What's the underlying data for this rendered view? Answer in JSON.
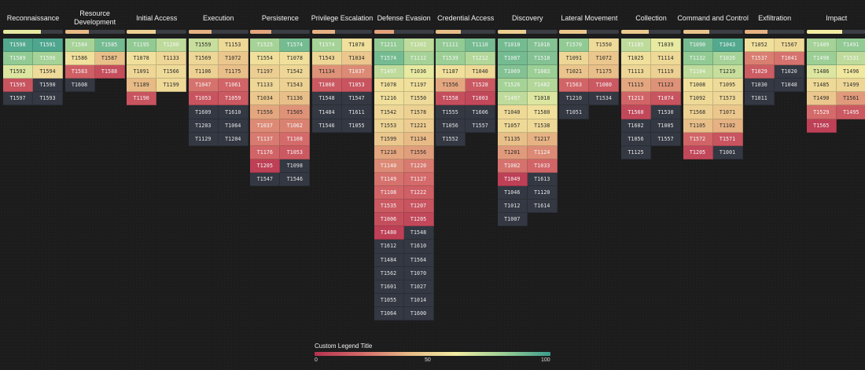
{
  "chart_data": {
    "type": "heatmap",
    "title": "",
    "legend": {
      "title": "Custom Legend Title",
      "min": 0,
      "max": 100,
      "ticks": [
        "0",
        "50",
        "100"
      ],
      "colors": [
        "#b5324f",
        "#d46a6a",
        "#e8ba86",
        "#f2eda3",
        "#9ccf95",
        "#3a9c8c"
      ],
      "placement": "bottom-center"
    },
    "empty_color": "#333842",
    "tactics": [
      {
        "name": "Reconnaissance",
        "progress": 63,
        "techniques": [
          {
            "id": "T1598",
            "score": 95
          },
          {
            "id": "T1591",
            "score": 96
          },
          {
            "id": "T1589",
            "score": 82
          },
          {
            "id": "T1596",
            "score": 78
          },
          {
            "id": "T1592",
            "score": 65
          },
          {
            "id": "T1594",
            "score": 53
          },
          {
            "id": "T1595",
            "score": 12
          },
          {
            "id": "T1590",
            "score": null
          },
          {
            "id": "T1597",
            "score": null
          },
          {
            "id": "T1593",
            "score": null
          }
        ]
      },
      {
        "name": "Resource Development",
        "progress": 40,
        "techniques": [
          {
            "id": "T1584",
            "score": 78
          },
          {
            "id": "T1585",
            "score": 88
          },
          {
            "id": "T1586",
            "score": 55
          },
          {
            "id": "T1587",
            "score": 42
          },
          {
            "id": "T1583",
            "score": 16
          },
          {
            "id": "T1588",
            "score": 10
          },
          {
            "id": "T1608",
            "score": null
          }
        ]
      },
      {
        "name": "Initial Access",
        "progress": 49,
        "techniques": [
          {
            "id": "T1195",
            "score": 82
          },
          {
            "id": "T1200",
            "score": 72
          },
          {
            "id": "T1078",
            "score": 55
          },
          {
            "id": "T1133",
            "score": 51
          },
          {
            "id": "T1091",
            "score": 51
          },
          {
            "id": "T1566",
            "score": 53
          },
          {
            "id": "T1189",
            "score": 40
          },
          {
            "id": "T1199",
            "score": 52
          },
          {
            "id": "T1190",
            "score": 12
          }
        ]
      },
      {
        "name": "Execution",
        "progress": 38,
        "techniques": [
          {
            "id": "T1559",
            "score": 70
          },
          {
            "id": "T1153",
            "score": 52
          },
          {
            "id": "T1569",
            "score": 51
          },
          {
            "id": "T1072",
            "score": 45
          },
          {
            "id": "T1106",
            "score": 49
          },
          {
            "id": "T1175",
            "score": 42
          },
          {
            "id": "T1047",
            "score": 22
          },
          {
            "id": "T1061",
            "score": 18
          },
          {
            "id": "T1053",
            "score": 12
          },
          {
            "id": "T1059",
            "score": 14
          },
          {
            "id": "T1609",
            "score": null
          },
          {
            "id": "T1610",
            "score": null
          },
          {
            "id": "T1203",
            "score": null
          },
          {
            "id": "T1064",
            "score": null
          },
          {
            "id": "T1129",
            "score": null
          },
          {
            "id": "T1204",
            "score": null
          }
        ]
      },
      {
        "name": "Persistence",
        "progress": 35,
        "techniques": [
          {
            "id": "T1525",
            "score": 78
          },
          {
            "id": "T1574",
            "score": 88
          },
          {
            "id": "T1554",
            "score": 55
          },
          {
            "id": "T1078",
            "score": 55
          },
          {
            "id": "T1197",
            "score": 48
          },
          {
            "id": "T1542",
            "score": 51
          },
          {
            "id": "T1133",
            "score": 51
          },
          {
            "id": "T1543",
            "score": 49
          },
          {
            "id": "T1034",
            "score": 45
          },
          {
            "id": "T1136",
            "score": 42
          },
          {
            "id": "T1556",
            "score": 35
          },
          {
            "id": "T1505",
            "score": 30
          },
          {
            "id": "T1037",
            "score": 28
          },
          {
            "id": "T1062",
            "score": 26
          },
          {
            "id": "T1137",
            "score": 24
          },
          {
            "id": "T1108",
            "score": 20
          },
          {
            "id": "T1176",
            "score": 18
          },
          {
            "id": "T1053",
            "score": 14
          },
          {
            "id": "T1205",
            "score": 5
          },
          {
            "id": "T1098",
            "score": null
          },
          {
            "id": "T1547",
            "score": null
          },
          {
            "id": "T1546",
            "score": null
          }
        ]
      },
      {
        "name": "Privilege Escalation",
        "progress": 38,
        "techniques": [
          {
            "id": "T1574",
            "score": 78
          },
          {
            "id": "T1078",
            "score": 55
          },
          {
            "id": "T1543",
            "score": 51
          },
          {
            "id": "T1034",
            "score": 45
          },
          {
            "id": "T1134",
            "score": 30
          },
          {
            "id": "T1037",
            "score": 28
          },
          {
            "id": "T1068",
            "score": 14
          },
          {
            "id": "T1053",
            "score": 12
          },
          {
            "id": "T1548",
            "score": null
          },
          {
            "id": "T1547",
            "score": null
          },
          {
            "id": "T1484",
            "score": null
          },
          {
            "id": "T1611",
            "score": null
          },
          {
            "id": "T1546",
            "score": null
          },
          {
            "id": "T1055",
            "score": null
          }
        ]
      },
      {
        "name": "Defense Evasion",
        "progress": 34,
        "techniques": [
          {
            "id": "T1211",
            "score": 82
          },
          {
            "id": "T1202",
            "score": 72
          },
          {
            "id": "T1574",
            "score": 88
          },
          {
            "id": "T1112",
            "score": 78
          },
          {
            "id": "T1497",
            "score": 72
          },
          {
            "id": "T1036",
            "score": 62
          },
          {
            "id": "T1078",
            "score": 55
          },
          {
            "id": "T1197",
            "score": 55
          },
          {
            "id": "T1216",
            "score": 55
          },
          {
            "id": "T1550",
            "score": 53
          },
          {
            "id": "T1542",
            "score": 51
          },
          {
            "id": "T1578",
            "score": 49
          },
          {
            "id": "T1553",
            "score": 50
          },
          {
            "id": "T1221",
            "score": 47
          },
          {
            "id": "T1599",
            "score": 45
          },
          {
            "id": "T1134",
            "score": 40
          },
          {
            "id": "T1218",
            "score": 35
          },
          {
            "id": "T1556",
            "score": 33
          },
          {
            "id": "T1140",
            "score": 28
          },
          {
            "id": "T1220",
            "score": 24
          },
          {
            "id": "T1149",
            "score": 22
          },
          {
            "id": "T1127",
            "score": 20
          },
          {
            "id": "T1108",
            "score": 18
          },
          {
            "id": "T1222",
            "score": 16
          },
          {
            "id": "T1535",
            "score": 14
          },
          {
            "id": "T1207",
            "score": 12
          },
          {
            "id": "T1006",
            "score": 10
          },
          {
            "id": "T1205",
            "score": 8
          },
          {
            "id": "T1480",
            "score": 5
          },
          {
            "id": "T1548",
            "score": null
          },
          {
            "id": "T1612",
            "score": null
          },
          {
            "id": "T1610",
            "score": null
          },
          {
            "id": "T1484",
            "score": null
          },
          {
            "id": "T1564",
            "score": null
          },
          {
            "id": "T1562",
            "score": null
          },
          {
            "id": "T1070",
            "score": null
          },
          {
            "id": "T1601",
            "score": null
          },
          {
            "id": "T1027",
            "score": null
          },
          {
            "id": "T1055",
            "score": null
          },
          {
            "id": "T1014",
            "score": null
          },
          {
            "id": "T1064",
            "score": null
          },
          {
            "id": "T1600",
            "score": null
          }
        ]
      },
      {
        "name": "Credential Access",
        "progress": 42,
        "techniques": [
          {
            "id": "T1111",
            "score": 82
          },
          {
            "id": "T1110",
            "score": 88
          },
          {
            "id": "T1539",
            "score": 80
          },
          {
            "id": "T1212",
            "score": 75
          },
          {
            "id": "T1187",
            "score": 55
          },
          {
            "id": "T1040",
            "score": 52
          },
          {
            "id": "T1556",
            "score": 35
          },
          {
            "id": "T1528",
            "score": 14
          },
          {
            "id": "T1558",
            "score": 10
          },
          {
            "id": "T1003",
            "score": 8
          },
          {
            "id": "T1555",
            "score": null
          },
          {
            "id": "T1606",
            "score": null
          },
          {
            "id": "T1056",
            "score": null
          },
          {
            "id": "T1557",
            "score": null
          },
          {
            "id": "T1552",
            "score": null
          }
        ]
      },
      {
        "name": "Discovery",
        "progress": 48,
        "techniques": [
          {
            "id": "T1010",
            "score": 88
          },
          {
            "id": "T1016",
            "score": 85
          },
          {
            "id": "T1087",
            "score": 88
          },
          {
            "id": "T1518",
            "score": 85
          },
          {
            "id": "T1069",
            "score": 85
          },
          {
            "id": "T1083",
            "score": 80
          },
          {
            "id": "T1526",
            "score": 78
          },
          {
            "id": "T1482",
            "score": 75
          },
          {
            "id": "T1497",
            "score": 72
          },
          {
            "id": "T1018",
            "score": 65
          },
          {
            "id": "T1040",
            "score": 52
          },
          {
            "id": "T1580",
            "score": 55
          },
          {
            "id": "T1057",
            "score": 52
          },
          {
            "id": "T1538",
            "score": 52
          },
          {
            "id": "T1135",
            "score": 42
          },
          {
            "id": "T1217",
            "score": 38
          },
          {
            "id": "T1201",
            "score": 32
          },
          {
            "id": "T1124",
            "score": 28
          },
          {
            "id": "T1082",
            "score": 22
          },
          {
            "id": "T1033",
            "score": 18
          },
          {
            "id": "T1049",
            "score": 5
          },
          {
            "id": "T1613",
            "score": null
          },
          {
            "id": "T1046",
            "score": null
          },
          {
            "id": "T1120",
            "score": null
          },
          {
            "id": "T1012",
            "score": null
          },
          {
            "id": "T1614",
            "score": null
          },
          {
            "id": "T1007",
            "score": null
          }
        ]
      },
      {
        "name": "Lateral Movement",
        "progress": 45,
        "techniques": [
          {
            "id": "T1570",
            "score": 82
          },
          {
            "id": "T1550",
            "score": 53
          },
          {
            "id": "T1091",
            "score": 51
          },
          {
            "id": "T1072",
            "score": 45
          },
          {
            "id": "T1021",
            "score": 44
          },
          {
            "id": "T1175",
            "score": 42
          },
          {
            "id": "T1563",
            "score": 18
          },
          {
            "id": "T1080",
            "score": 14
          },
          {
            "id": "T1210",
            "score": null
          },
          {
            "id": "T1534",
            "score": null
          },
          {
            "id": "T1051",
            "score": null
          }
        ]
      },
      {
        "name": "Collection",
        "progress": 46,
        "techniques": [
          {
            "id": "T1185",
            "score": 72
          },
          {
            "id": "T1039",
            "score": 62
          },
          {
            "id": "T1025",
            "score": 55
          },
          {
            "id": "T1114",
            "score": 52
          },
          {
            "id": "T1113",
            "score": 51
          },
          {
            "id": "T1119",
            "score": 49
          },
          {
            "id": "T1115",
            "score": 35
          },
          {
            "id": "T1123",
            "score": 30
          },
          {
            "id": "T1213",
            "score": 18
          },
          {
            "id": "T1074",
            "score": 12
          },
          {
            "id": "T1560",
            "score": 8
          },
          {
            "id": "T1530",
            "score": null
          },
          {
            "id": "T1602",
            "score": null
          },
          {
            "id": "T1005",
            "score": null
          },
          {
            "id": "T1056",
            "score": null
          },
          {
            "id": "T1557",
            "score": null
          },
          {
            "id": "T1125",
            "score": null
          }
        ]
      },
      {
        "name": "Command and Control",
        "progress": 44,
        "techniques": [
          {
            "id": "T1090",
            "score": 88
          },
          {
            "id": "T1043",
            "score": 95
          },
          {
            "id": "T1132",
            "score": 82
          },
          {
            "id": "T1026",
            "score": 78
          },
          {
            "id": "T1104",
            "score": 72
          },
          {
            "id": "T1219",
            "score": 70
          },
          {
            "id": "T1008",
            "score": 55
          },
          {
            "id": "T1095",
            "score": 53
          },
          {
            "id": "T1092",
            "score": 52
          },
          {
            "id": "T1573",
            "score": 51
          },
          {
            "id": "T1568",
            "score": 49
          },
          {
            "id": "T1071",
            "score": 45
          },
          {
            "id": "T1105",
            "score": 42
          },
          {
            "id": "T1102",
            "score": 38
          },
          {
            "id": "T1572",
            "score": 18
          },
          {
            "id": "T1571",
            "score": 12
          },
          {
            "id": "T1205",
            "score": 8
          },
          {
            "id": "T1001",
            "score": null
          }
        ]
      },
      {
        "name": "Exfiltration",
        "progress": 38,
        "techniques": [
          {
            "id": "T1052",
            "score": 55
          },
          {
            "id": "T1567",
            "score": 52
          },
          {
            "id": "T1537",
            "score": 25
          },
          {
            "id": "T1041",
            "score": 22
          },
          {
            "id": "T1029",
            "score": 15
          },
          {
            "id": "T1020",
            "score": null
          },
          {
            "id": "T1030",
            "score": null
          },
          {
            "id": "T1048",
            "score": null
          },
          {
            "id": "T1011",
            "score": null
          }
        ]
      },
      {
        "name": "Impact",
        "progress": 60,
        "techniques": [
          {
            "id": "T1489",
            "score": 78
          },
          {
            "id": "T1491",
            "score": 82
          },
          {
            "id": "T1498",
            "score": 80
          },
          {
            "id": "T1531",
            "score": 72
          },
          {
            "id": "T1486",
            "score": 65
          },
          {
            "id": "T1496",
            "score": 58
          },
          {
            "id": "T1485",
            "score": 52
          },
          {
            "id": "T1499",
            "score": 51
          },
          {
            "id": "T1490",
            "score": 45
          },
          {
            "id": "T1561",
            "score": 32
          },
          {
            "id": "T1529",
            "score": 20
          },
          {
            "id": "T1495",
            "score": 14
          },
          {
            "id": "T1565",
            "score": 5
          }
        ]
      }
    ]
  }
}
